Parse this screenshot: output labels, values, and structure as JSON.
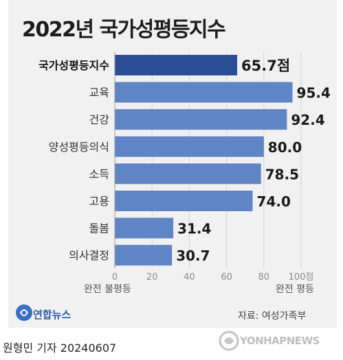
{
  "title": "2022년 국가성평등지수",
  "chart_data": {
    "type": "bar",
    "orientation": "horizontal",
    "categories": [
      "국가성평등지수",
      "교육",
      "건강",
      "양성평등의식",
      "소득",
      "고용",
      "돌봄",
      "의사결정"
    ],
    "values": [
      65.7,
      95.4,
      92.4,
      80.0,
      78.5,
      74.0,
      31.4,
      30.7
    ],
    "value_labels": [
      "65.7점",
      "95.4",
      "92.4",
      "80.0",
      "78.5",
      "74.0",
      "31.4",
      "30.7"
    ],
    "xlim": [
      0,
      100
    ],
    "x_ticks": [
      "0",
      "20",
      "40",
      "60",
      "80",
      "100점"
    ],
    "x_left_caption": "완전 불평등",
    "x_right_caption": "완전 평등",
    "grid": true,
    "colors": {
      "highlight": "#2b4d95",
      "bar": "#5f85c6"
    }
  },
  "source": "자료: 여성가족부",
  "agency": "연합뉴스",
  "credit": "원형민 기자  20240607",
  "watermark": "YONHAPNEWS"
}
